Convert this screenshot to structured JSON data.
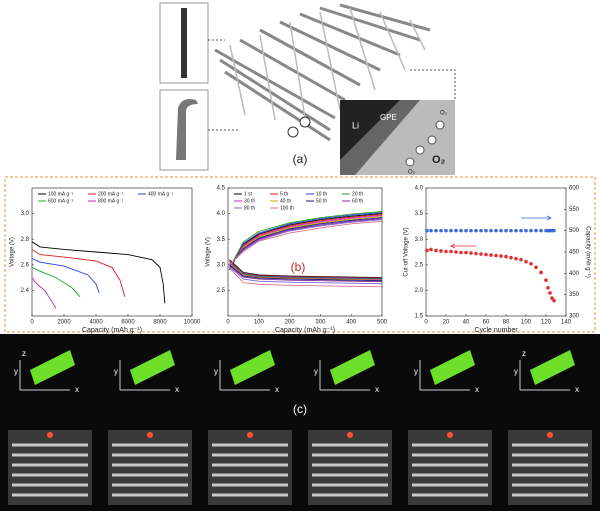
{
  "panel_a": {
    "label": "(a)",
    "inset_labels": [
      "Li",
      "GPE",
      "O₂",
      "O₂",
      "O₂"
    ]
  },
  "panel_b_label": "(b)",
  "panel_c": {
    "label": "(c)",
    "frames": [
      [
        "z",
        "y",
        "x"
      ],
      [
        "y",
        "x"
      ],
      [
        "y",
        "x"
      ],
      [
        "y",
        "x"
      ],
      [
        "y",
        "x"
      ],
      [
        "z",
        "y",
        "x"
      ]
    ]
  },
  "chart_data": [
    {
      "type": "line",
      "xlabel": "Capacity (mAh g⁻¹)",
      "ylabel": "Voltage (V)",
      "xlim": [
        0,
        10000
      ],
      "xticks": [
        0,
        2000,
        4000,
        6000,
        8000,
        10000
      ],
      "ylim": [
        2.2,
        3.2
      ],
      "yticks": [
        2.4,
        2.6,
        2.8,
        {
          "value": 3,
          "label": "3.0"
        }
      ],
      "legend": "top",
      "legend_columns": 3,
      "series": [
        {
          "name": "100 mA g⁻¹",
          "color": "#000000",
          "x": [
            0,
            500,
            2000,
            4000,
            6000,
            7500,
            8000,
            8200,
            8300
          ],
          "values": [
            2.78,
            2.74,
            2.72,
            2.7,
            2.68,
            2.64,
            2.58,
            2.45,
            2.3
          ]
        },
        {
          "name": "200 mA g⁻¹",
          "color": "#e0201c",
          "x": [
            0,
            500,
            2000,
            4000,
            5000,
            5500,
            5800
          ],
          "values": [
            2.72,
            2.68,
            2.66,
            2.63,
            2.58,
            2.48,
            2.35
          ]
        },
        {
          "name": "400 mA g⁻¹",
          "color": "#2a3fd8",
          "x": [
            0,
            500,
            2000,
            3500,
            4000,
            4200
          ],
          "values": [
            2.65,
            2.62,
            2.59,
            2.52,
            2.45,
            2.38
          ]
        },
        {
          "name": "600 mA g⁻¹",
          "color": "#1fa81f",
          "x": [
            0,
            500,
            1500,
            2500,
            3000
          ],
          "values": [
            2.58,
            2.55,
            2.5,
            2.42,
            2.35
          ]
        },
        {
          "name": "800 mA g⁻¹",
          "color": "#d020c8",
          "x": [
            0,
            300,
            800,
            1200,
            1500
          ],
          "values": [
            2.5,
            2.45,
            2.4,
            2.32,
            2.26
          ]
        }
      ]
    },
    {
      "type": "line",
      "xlabel": "Capacity (mAh g⁻¹)",
      "ylabel": "Voltage (V)",
      "xlim": [
        0,
        500
      ],
      "xticks": [
        0,
        100,
        200,
        300,
        400,
        500
      ],
      "ylim": [
        2,
        4.5
      ],
      "yticks": [
        2.5,
        {
          "value": 3,
          "label": "3.0"
        },
        3.5,
        {
          "value": 4,
          "label": "4.0"
        },
        4.5
      ],
      "legend": "top",
      "legend_columns": 4,
      "x": [
        5,
        50,
        100,
        200,
        300,
        400,
        500
      ],
      "series": [
        {
          "name": "1 st",
          "color": "#000000",
          "values": [
            3.1,
            2.85,
            2.8,
            2.78,
            2.77,
            2.76,
            2.75
          ],
          "charge_values": [
            2.9,
            3.4,
            3.6,
            3.78,
            3.88,
            3.95,
            4.0
          ]
        },
        {
          "name": "5 th",
          "color": "#e0201c",
          "values": [
            3.08,
            2.84,
            2.79,
            2.77,
            2.76,
            2.75,
            2.74
          ],
          "charge_values": [
            2.92,
            3.38,
            3.58,
            3.76,
            3.86,
            3.93,
            3.98
          ]
        },
        {
          "name": "10 th",
          "color": "#2a3fd8",
          "values": [
            3.06,
            2.83,
            2.78,
            2.76,
            2.75,
            2.74,
            2.73
          ],
          "charge_values": [
            2.93,
            3.42,
            3.62,
            3.8,
            3.9,
            3.97,
            4.02
          ]
        },
        {
          "name": "20 th",
          "color": "#1fa81f",
          "values": [
            3.05,
            2.82,
            2.77,
            2.75,
            2.74,
            2.73,
            2.72
          ],
          "charge_values": [
            2.94,
            3.45,
            3.65,
            3.82,
            3.92,
            3.99,
            4.04
          ]
        },
        {
          "name": "30 th",
          "color": "#d020c8",
          "values": [
            3.04,
            2.8,
            2.76,
            2.74,
            2.73,
            2.72,
            2.71
          ],
          "charge_values": [
            2.95,
            3.36,
            3.56,
            3.74,
            3.84,
            3.91,
            3.96
          ]
        },
        {
          "name": "40 th",
          "color": "#c8a800",
          "values": [
            3.02,
            2.79,
            2.75,
            2.73,
            2.72,
            2.71,
            2.7
          ],
          "charge_values": [
            2.96,
            3.34,
            3.54,
            3.72,
            3.82,
            3.89,
            3.94
          ]
        },
        {
          "name": "50 th",
          "color": "#1a1a80",
          "values": [
            3.0,
            2.78,
            2.74,
            2.72,
            2.71,
            2.7,
            2.69
          ],
          "charge_values": [
            2.97,
            3.32,
            3.52,
            3.7,
            3.8,
            3.87,
            3.92
          ]
        },
        {
          "name": "60 th",
          "color": "#7a2a90",
          "values": [
            2.98,
            2.76,
            2.72,
            2.7,
            2.69,
            2.68,
            2.67
          ],
          "charge_values": [
            2.98,
            3.3,
            3.5,
            3.68,
            3.78,
            3.85,
            3.9
          ]
        },
        {
          "name": "80 th",
          "color": "#8060e0",
          "values": [
            2.96,
            2.72,
            2.68,
            2.66,
            2.65,
            2.64,
            2.63
          ],
          "charge_values": [
            2.99,
            3.28,
            3.48,
            3.66,
            3.76,
            3.83,
            3.88
          ]
        },
        {
          "name": "100 th",
          "color": "#e07090",
          "values": [
            2.94,
            2.65,
            2.62,
            2.6,
            2.59,
            2.58,
            2.57
          ],
          "charge_values": [
            3.0,
            3.26,
            3.46,
            3.62,
            3.72,
            3.8,
            3.85
          ]
        }
      ]
    },
    {
      "type": "scatter",
      "xlabel": "Cycle number",
      "ylabel": "Cut-off Voltage (V)",
      "y2label": "Capacity (mAh g⁻¹)",
      "xlim": [
        0,
        140
      ],
      "xticks": [
        0,
        20,
        40,
        60,
        80,
        100,
        120,
        140
      ],
      "ylim": [
        1.5,
        4
      ],
      "yticks": [
        1.5,
        {
          "value": 2,
          "label": "2.0"
        },
        2.5,
        {
          "value": 3,
          "label": "3.0"
        },
        3.5,
        {
          "value": 4,
          "label": "4.0"
        }
      ],
      "y2lim": [
        300,
        600
      ],
      "y2ticks": [
        300,
        350,
        400,
        450,
        500,
        550,
        600
      ],
      "x": [
        1,
        5,
        10,
        15,
        20,
        25,
        30,
        35,
        40,
        45,
        50,
        55,
        60,
        65,
        70,
        75,
        80,
        85,
        90,
        95,
        100,
        105,
        110,
        115,
        120,
        122,
        124,
        126,
        128
      ],
      "series": [
        {
          "color": "#e03030",
          "values": [
            2.78,
            2.8,
            2.78,
            2.77,
            2.76,
            2.76,
            2.75,
            2.74,
            2.74,
            2.73,
            2.72,
            2.71,
            2.7,
            2.69,
            2.68,
            2.67,
            2.66,
            2.64,
            2.62,
            2.6,
            2.56,
            2.52,
            2.45,
            2.35,
            2.2,
            2.05,
            1.95,
            1.85,
            1.8
          ]
        },
        {
          "color": "#3a6ad8",
          "axis": "y2",
          "values": [
            500,
            500,
            500,
            500,
            500,
            500,
            500,
            500,
            500,
            500,
            500,
            500,
            500,
            500,
            500,
            500,
            500,
            500,
            500,
            500,
            500,
            500,
            500,
            500,
            500,
            500,
            500,
            500,
            500
          ]
        }
      ]
    }
  ]
}
